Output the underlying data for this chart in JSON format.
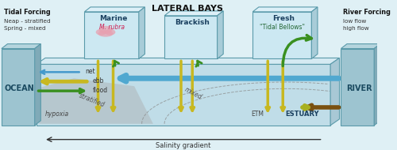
{
  "title": "LATERAL BAYS",
  "bg_color": "#dff0f5",
  "ocean_color": "#9dc4d0",
  "estuary_fill": "#c0dde8",
  "bay_fill": "#cce8f2",
  "bay_top": "#ddf0f8",
  "river_fill": "#9dc4d0",
  "box_edge": "#6aaabb",
  "tidal_forcing": [
    "Tidal Forcing",
    "Neap - stratified",
    "Spring - mixed"
  ],
  "river_forcing": [
    "River Forcing",
    "low flow",
    "high flow"
  ],
  "bay_labels": [
    "Marine",
    "Brackish",
    "Fresh"
  ],
  "bay_sublabels": [
    "M. rubra",
    "",
    "\"Tidal Bellows\""
  ],
  "flow_labels": [
    "net",
    "ebb",
    "flood"
  ],
  "ocean_label": "OCEAN",
  "river_label": "RIVER",
  "salinity_label": "Salinity gradient",
  "estuary_label": "ESTUARY",
  "hypoxia_label": "hypoxia",
  "stratified_label": "stratified",
  "mixed_label": "mixed",
  "etm_label": "ETM"
}
